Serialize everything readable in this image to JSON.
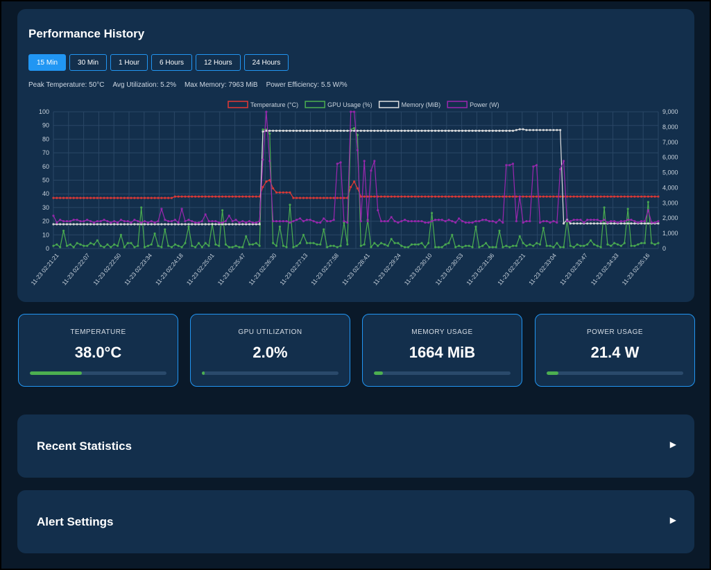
{
  "history": {
    "title": "Performance History",
    "ranges": [
      "15 Min",
      "30 Min",
      "1 Hour",
      "6 Hours",
      "12 Hours",
      "24 Hours"
    ],
    "active_range": 0,
    "summary": {
      "peak_temp": "Peak Temperature: 50°C",
      "avg_util": "Avg Utilization: 5.2%",
      "max_mem": "Max Memory: 7963 MiB",
      "efficiency": "Power Efficiency: 5.5 W/%"
    }
  },
  "chart_data": {
    "type": "line",
    "legend_position": "top",
    "grid": true,
    "x_tick_labels": [
      "11-23 02:21:21",
      "11-23 02:22:07",
      "11-23 02:22:50",
      "11-23 02:23:34",
      "11-23 02:24:18",
      "11-23 02:25:01",
      "11-23 02:25:47",
      "11-23 02:26:30",
      "11-23 02:27:13",
      "11-23 02:27:58",
      "11-23 02:28:41",
      "11-23 02:29:24",
      "11-23 02:30:10",
      "11-23 02:30:53",
      "11-23 02:31:36",
      "11-23 02:32:21",
      "11-23 02:33:04",
      "11-23 02:33:47",
      "11-23 02:34:33",
      "11-23 02:35:16"
    ],
    "y_left": {
      "min": 0,
      "max": 100,
      "ticks": [
        "100",
        "90",
        "80",
        "70",
        "60",
        "50",
        "40",
        "30",
        "20",
        "10",
        "0"
      ]
    },
    "y_right": {
      "min": 0,
      "max": 9000,
      "ticks": [
        "9,000",
        "8,000",
        "7,000",
        "6,000",
        "5,000",
        "4,000",
        "3,000",
        "2,000",
        "1,000",
        "0"
      ]
    },
    "point_count": 180,
    "series": [
      {
        "name": "Temperature (°C)",
        "axis": "left",
        "color": "#e53935",
        "base": 37,
        "segments": [
          [
            0,
            35,
            37
          ],
          [
            36,
            65,
            38
          ],
          [
            66,
            70,
            41
          ],
          [
            71,
            90,
            37
          ],
          [
            91,
            110,
            38
          ],
          [
            111,
            150,
            38
          ],
          [
            151,
            179,
            38
          ]
        ],
        "spikes": [
          [
            62,
            45
          ],
          [
            63,
            49
          ],
          [
            64,
            50
          ],
          [
            65,
            44
          ],
          [
            88,
            45
          ],
          [
            89,
            49
          ],
          [
            90,
            44
          ]
        ]
      },
      {
        "name": "GPU Usage (%)",
        "axis": "left",
        "color": "#4caf50",
        "base": 2,
        "spikes": [
          [
            3,
            13
          ],
          [
            13,
            6
          ],
          [
            20,
            10
          ],
          [
            26,
            30
          ],
          [
            30,
            11
          ],
          [
            33,
            14
          ],
          [
            40,
            16
          ],
          [
            47,
            18
          ],
          [
            50,
            28
          ],
          [
            57,
            9
          ],
          [
            62,
            87
          ],
          [
            63,
            87
          ],
          [
            64,
            84
          ],
          [
            67,
            16
          ],
          [
            70,
            32
          ],
          [
            74,
            10
          ],
          [
            80,
            14
          ],
          [
            86,
            19
          ],
          [
            88,
            87
          ],
          [
            89,
            88
          ],
          [
            90,
            83
          ],
          [
            93,
            21
          ],
          [
            100,
            7
          ],
          [
            112,
            26
          ],
          [
            118,
            10
          ],
          [
            125,
            16
          ],
          [
            132,
            13
          ],
          [
            138,
            9
          ],
          [
            145,
            15
          ],
          [
            152,
            21
          ],
          [
            159,
            6
          ],
          [
            163,
            30
          ],
          [
            170,
            29
          ],
          [
            176,
            34
          ]
        ]
      },
      {
        "name": "Memory (MiB)",
        "axis": "right",
        "color": "#e0e0e0",
        "segments": [
          [
            0,
            61,
            1600
          ],
          [
            62,
            136,
            7750
          ],
          [
            137,
            150,
            7800
          ],
          [
            151,
            179,
            1650
          ]
        ],
        "spikes": [
          [
            62,
            7700
          ],
          [
            138,
            7850
          ],
          [
            139,
            7850
          ],
          [
            152,
            1900
          ]
        ]
      },
      {
        "name": "Power (W)",
        "axis": "left",
        "color": "#9c27b0",
        "base": 20,
        "spikes": [
          [
            0,
            24
          ],
          [
            20,
            21
          ],
          [
            32,
            29
          ],
          [
            38,
            29
          ],
          [
            45,
            25
          ],
          [
            52,
            24
          ],
          [
            62,
            65
          ],
          [
            63,
            100
          ],
          [
            64,
            64
          ],
          [
            67,
            20
          ],
          [
            73,
            22
          ],
          [
            80,
            22
          ],
          [
            84,
            62
          ],
          [
            85,
            63
          ],
          [
            88,
            100
          ],
          [
            89,
            100
          ],
          [
            90,
            72
          ],
          [
            92,
            64
          ],
          [
            94,
            57
          ],
          [
            95,
            64
          ],
          [
            96,
            28
          ],
          [
            100,
            23
          ],
          [
            120,
            22
          ],
          [
            132,
            21
          ],
          [
            134,
            61
          ],
          [
            135,
            61
          ],
          [
            136,
            62
          ],
          [
            138,
            38
          ],
          [
            142,
            60
          ],
          [
            143,
            61
          ],
          [
            150,
            58
          ],
          [
            151,
            64
          ],
          [
            156,
            21
          ],
          [
            170,
            21
          ],
          [
            176,
            28
          ]
        ]
      }
    ]
  },
  "metrics": [
    {
      "label": "TEMPERATURE",
      "value": "38.0°C",
      "fill": 0.38
    },
    {
      "label": "GPU UTILIZATION",
      "value": "2.0%",
      "fill": 0.02
    },
    {
      "label": "MEMORY USAGE",
      "value": "1664 MiB",
      "fill": 0.065
    },
    {
      "label": "POWER USAGE",
      "value": "21.4 W",
      "fill": 0.085
    }
  ],
  "sections": [
    {
      "title": "Recent Statistics",
      "arrow": "▶"
    },
    {
      "title": "Alert Settings",
      "arrow": "▶"
    }
  ]
}
